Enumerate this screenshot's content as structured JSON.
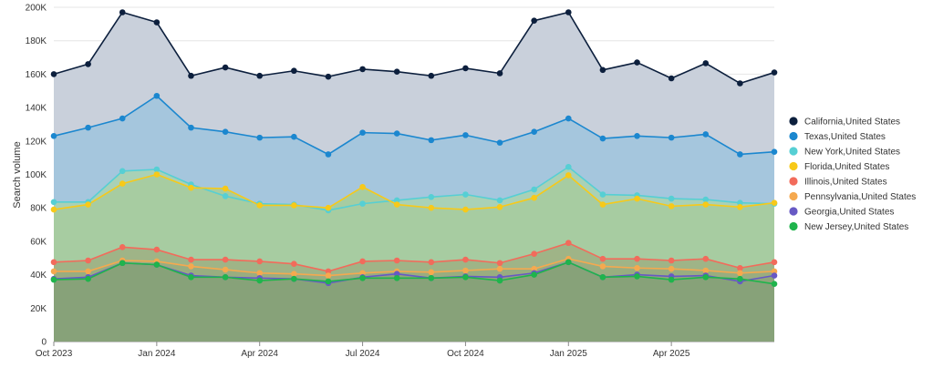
{
  "chart_data": {
    "type": "area",
    "title": "",
    "xlabel": "",
    "ylabel": "Search volume",
    "ylim": [
      0,
      200000
    ],
    "yticks": [
      0,
      20000,
      40000,
      60000,
      80000,
      100000,
      120000,
      140000,
      160000,
      180000,
      200000
    ],
    "ytick_labels": [
      "0",
      "20K",
      "40K",
      "60K",
      "80K",
      "100K",
      "120K",
      "140K",
      "160K",
      "180K",
      "200K"
    ],
    "xticks": [
      0,
      3,
      6,
      9,
      12,
      15,
      18
    ],
    "xtick_labels": [
      "Oct 2023",
      "Jan 2024",
      "Apr 2024",
      "Jul 2024",
      "Oct 2024",
      "Jan 2025",
      "Apr 2025"
    ],
    "grid": true,
    "legend_position": "right",
    "x": [
      "Oct 2023",
      "Nov 2023",
      "Dec 2023",
      "Jan 2024",
      "Feb 2024",
      "Mar 2024",
      "Apr 2024",
      "May 2024",
      "Jun 2024",
      "Jul 2024",
      "Aug 2024",
      "Sep 2024",
      "Oct 2024",
      "Nov 2024",
      "Dec 2024",
      "Jan 2025",
      "Feb 2025",
      "Mar 2025",
      "Apr 2025",
      "May 2025",
      "Jun 2025",
      "Jul 2025"
    ],
    "series": [
      {
        "name": "California,United States",
        "color": "#0c1f3d",
        "fill": "#c9d0db",
        "values": [
          160000,
          166000,
          197000,
          191000,
          159000,
          164000,
          159000,
          162000,
          158500,
          163000,
          161500,
          159000,
          163500,
          160500,
          192000,
          197000,
          162500,
          167000,
          157500,
          166500,
          154500,
          161000
        ]
      },
      {
        "name": "Texas,United States",
        "color": "#1b87cf",
        "fill": "#a5c6dd",
        "values": [
          123000,
          128000,
          133500,
          147000,
          128000,
          125500,
          122000,
          122500,
          112000,
          125000,
          124500,
          120500,
          123500,
          119000,
          125500,
          133500,
          121500,
          123000,
          122000,
          124000,
          112000,
          113500
        ]
      },
      {
        "name": "New York,United States",
        "color": "#56cfd4",
        "fill": "#a9d1b6",
        "values": [
          83500,
          83500,
          102000,
          103000,
          94000,
          87000,
          82500,
          82000,
          78500,
          82500,
          84500,
          86500,
          88000,
          84500,
          91000,
          104500,
          88000,
          87500,
          85500,
          85000,
          83000,
          82500
        ]
      },
      {
        "name": "Florida,United States",
        "color": "#f7c919",
        "fill": "#a7cca1",
        "values": [
          79000,
          82000,
          94500,
          100000,
          92000,
          91500,
          81500,
          81500,
          80000,
          92500,
          82000,
          80000,
          79000,
          80500,
          86000,
          99500,
          82000,
          85500,
          81000,
          82000,
          80500,
          83000
        ]
      },
      {
        "name": "Illinois,United States",
        "color": "#f26b5b",
        "fill": "#9fb487",
        "values": [
          47500,
          48500,
          56500,
          55000,
          49000,
          49000,
          48000,
          46500,
          42000,
          48000,
          48500,
          47500,
          49000,
          47000,
          52500,
          59000,
          49500,
          49500,
          48500,
          49500,
          44000,
          47500
        ]
      },
      {
        "name": "Pennsylvania,United States",
        "color": "#f5a94f",
        "fill": "#99ad80",
        "values": [
          42000,
          42000,
          48500,
          48000,
          45000,
          43000,
          41000,
          40500,
          39500,
          41000,
          42000,
          41500,
          42500,
          43500,
          43500,
          49500,
          45000,
          44000,
          43500,
          42500,
          41000,
          42000
        ]
      },
      {
        "name": "Georgia,United States",
        "color": "#6759c4",
        "fill": "#8fa57b",
        "values": [
          37500,
          38500,
          47000,
          46000,
          39500,
          38500,
          38000,
          37500,
          35000,
          38500,
          40500,
          38000,
          39000,
          38500,
          41000,
          47500,
          38500,
          40000,
          39000,
          39500,
          36000,
          39500
        ]
      },
      {
        "name": "New Jersey,United States",
        "color": "#1fb44c",
        "fill": "#87a279",
        "values": [
          37000,
          37500,
          47000,
          46000,
          38500,
          38500,
          36500,
          37500,
          36000,
          38000,
          38000,
          38000,
          38500,
          36500,
          40000,
          47500,
          38500,
          39000,
          37000,
          38500,
          37500,
          34500
        ]
      }
    ]
  }
}
